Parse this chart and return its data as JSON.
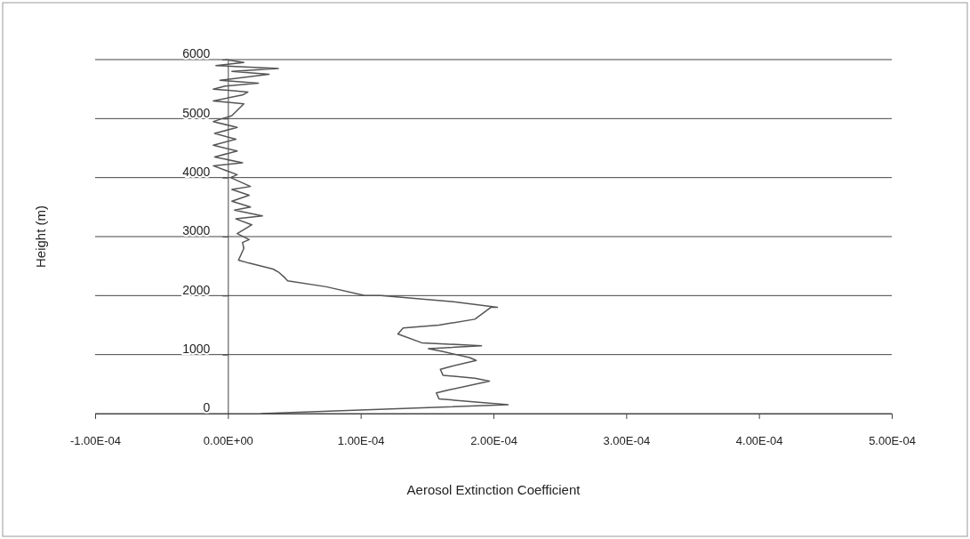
{
  "chart_data": {
    "type": "line",
    "xlabel": "Aerosol Extinction Coefficient",
    "ylabel": "Height (m)",
    "xlim": [
      -0.0001,
      0.0005
    ],
    "xticks": [
      {
        "value": -0.0001,
        "label": "-1.00E-04"
      },
      {
        "value": 0,
        "label": "0.00E+00"
      },
      {
        "value": 0.0001,
        "label": "1.00E-04"
      },
      {
        "value": 0.0002,
        "label": "2.00E-04"
      },
      {
        "value": 0.0003,
        "label": "3.00E-04"
      },
      {
        "value": 0.0004,
        "label": "4.00E-04"
      },
      {
        "value": 0.0005,
        "label": "5.00E-04"
      }
    ],
    "ylim": [
      0,
      6000
    ],
    "yticks": [
      0,
      1000,
      2000,
      3000,
      4000,
      5000,
      6000
    ],
    "grid": "y",
    "marker": "none",
    "line_style": "solid",
    "series": [
      {
        "color": "#555555",
        "x": [
          2.5e-05,
          0.000211,
          0.000159,
          0.000157,
          0.000166,
          0.000197,
          0.000186,
          0.000162,
          0.00016,
          0.000168,
          0.000187,
          0.000182,
          0.000162,
          0.000151,
          0.000191,
          0.000146,
          0.000128,
          0.000132,
          0.000159,
          0.000186,
          0.000198,
          0.000203,
          0.000168,
          0.000115,
          0.000103,
          7.4e-05,
          4.5e-05,
          4.3e-05,
          3.8e-05,
          3.4e-05,
          1.6e-05,
          8e-06,
          1.2e-05,
          1.1e-05,
          1.6e-05,
          7e-06,
          1.8e-05,
          6e-06,
          2.6e-05,
          5e-06,
          1.7e-05,
          3e-06,
          1.6e-05,
          3e-06,
          1.7e-05,
          2e-06,
          7e-06,
          -1.1e-05,
          1.1e-05,
          -1e-05,
          7e-06,
          -1.1e-05,
          6e-06,
          -1e-05,
          7e-06,
          -1.1e-05,
          3e-06,
          1.2e-05,
          -1.1e-05,
          1.1e-05,
          1.5e-05,
          -1.1e-05,
          -2e-06,
          2.3e-05,
          -6e-06,
          3.1e-05,
          3e-06,
          3.8e-05,
          -9e-06,
          1.2e-05,
          -2e-06
        ],
        "values": [
          0,
          150,
          250,
          350,
          400,
          550,
          600,
          650,
          750,
          800,
          900,
          950,
          1050,
          1100,
          1150,
          1200,
          1350,
          1450,
          1500,
          1600,
          1800,
          1800,
          1900,
          2000,
          2000,
          2150,
          2250,
          2300,
          2400,
          2450,
          2550,
          2600,
          2800,
          2900,
          2950,
          3050,
          3200,
          3300,
          3350,
          3450,
          3500,
          3600,
          3700,
          3800,
          3850,
          4000,
          4050,
          4200,
          4250,
          4350,
          4450,
          4550,
          4650,
          4750,
          4850,
          4950,
          5050,
          5250,
          5300,
          5400,
          5450,
          5500,
          5550,
          5600,
          5650,
          5750,
          5800,
          5850,
          5900,
          5950,
          6000
        ]
      }
    ]
  }
}
